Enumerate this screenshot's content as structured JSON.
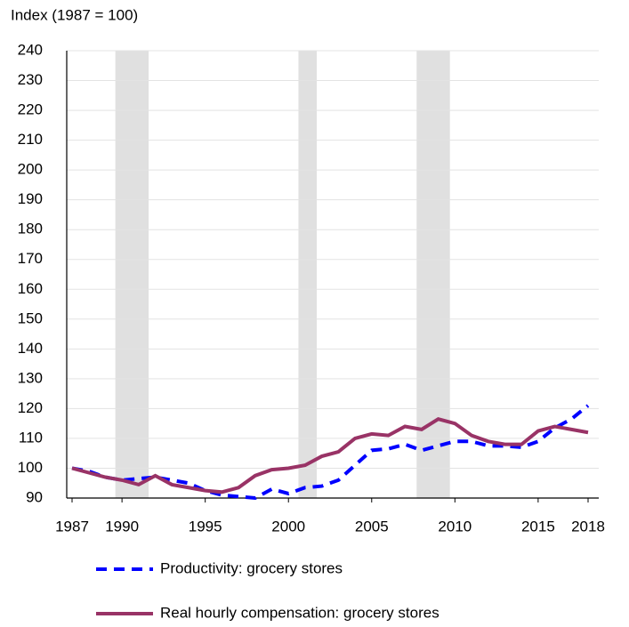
{
  "chart_data": {
    "type": "line",
    "y_label": "Index (1987 = 100)",
    "xlim": [
      1987,
      2018
    ],
    "xticks": [
      1987,
      1990,
      1995,
      2000,
      2005,
      2010,
      2015,
      2018
    ],
    "ylim": [
      90,
      240
    ],
    "yticks": [
      90,
      100,
      110,
      120,
      130,
      140,
      150,
      160,
      170,
      180,
      190,
      200,
      210,
      220,
      230,
      240
    ],
    "grid": true,
    "legend": "bottom",
    "recession_color": "#e0e0e0",
    "recessions": [
      [
        1989.6,
        1991.6
      ],
      [
        2000.6,
        2001.7
      ],
      [
        2007.7,
        2009.7
      ]
    ],
    "x": [
      1987,
      1988,
      1989,
      1990,
      1991,
      1992,
      1993,
      1994,
      1995,
      1996,
      1997,
      1998,
      1999,
      2000,
      2001,
      2002,
      2003,
      2004,
      2005,
      2006,
      2007,
      2008,
      2009,
      2010,
      2011,
      2012,
      2013,
      2014,
      2015,
      2016,
      2017,
      2018
    ],
    "series": [
      {
        "name": "Productivity: grocery stores",
        "color": "#0000ff",
        "style": "dashed",
        "values": [
          100,
          99,
          97,
          96,
          96.5,
          97,
          96,
          95,
          92.5,
          91,
          90.5,
          90,
          93,
          91.5,
          93.5,
          94,
          96,
          101,
          106,
          106.5,
          108,
          106,
          107.5,
          109,
          109,
          107.5,
          107.5,
          107,
          109,
          113.5,
          116.5,
          121
        ]
      },
      {
        "name": "Real hourly compensation: grocery stores",
        "color": "#993366",
        "style": "solid",
        "values": [
          100,
          98.5,
          97,
          96,
          94.5,
          97.5,
          94.5,
          93.5,
          92.5,
          92,
          93.5,
          97.5,
          99.5,
          100,
          101,
          104,
          105.5,
          110,
          111.5,
          111,
          114,
          113,
          116.5,
          115,
          111,
          109,
          108,
          108,
          112.5,
          114,
          113,
          112
        ]
      }
    ]
  }
}
